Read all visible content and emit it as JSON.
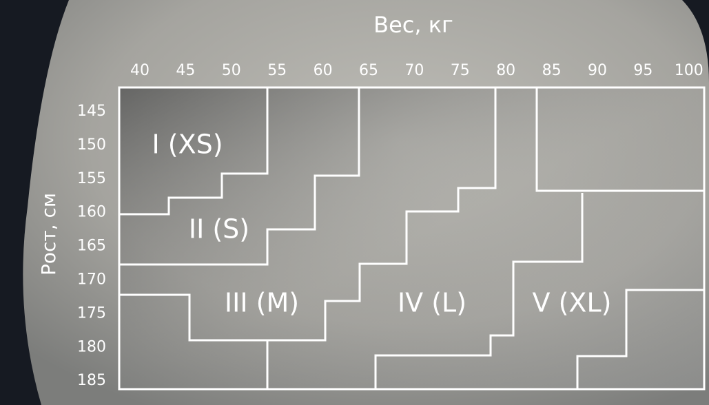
{
  "header": {
    "title": "Вес, кг"
  },
  "y_axis": {
    "title": "Рост, см"
  },
  "x_ticks": [
    40,
    45,
    50,
    55,
    60,
    65,
    70,
    75,
    80,
    85,
    90,
    95,
    100
  ],
  "y_ticks": [
    145,
    150,
    155,
    160,
    165,
    170,
    175,
    180,
    185
  ],
  "regions": [
    "I (XS)",
    "II (S)",
    "III (M)",
    "IV (L)",
    "V (XL)"
  ]
}
